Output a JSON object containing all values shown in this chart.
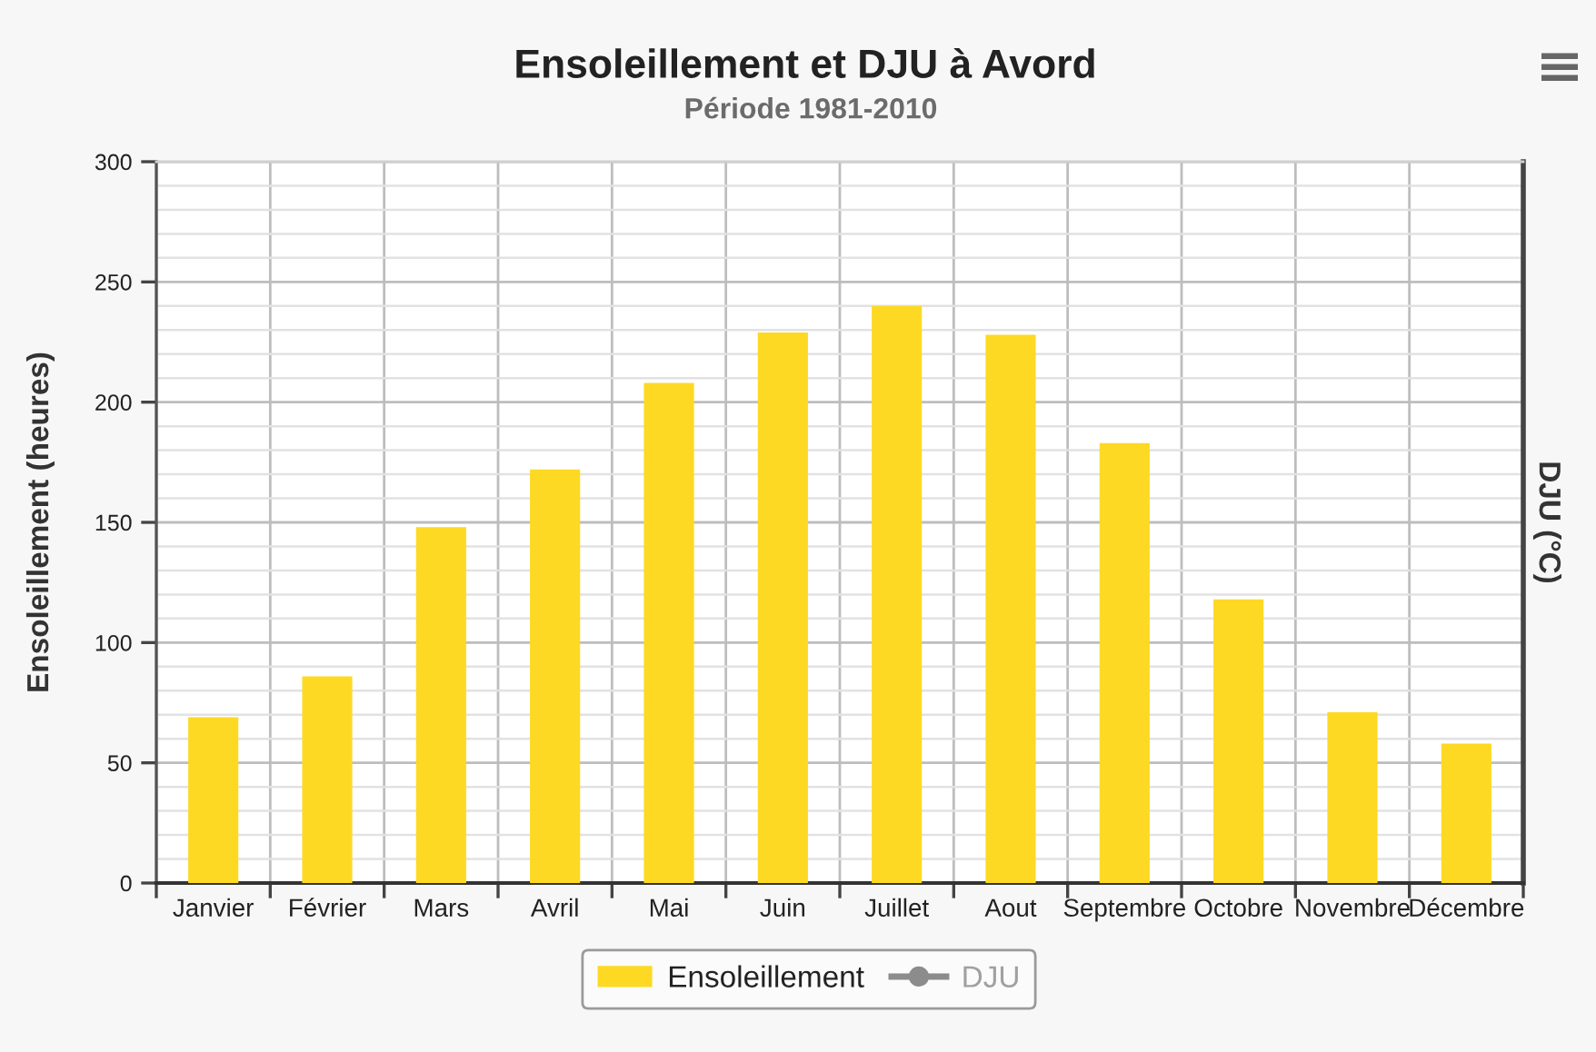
{
  "chart_data": {
    "type": "bar",
    "title": "Ensoleillement et DJU à Avord",
    "subtitle": "Période 1981-2010",
    "ylabel": "Ensoleillement (heures)",
    "y2label": "DJU (°C)",
    "categories": [
      "Janvier",
      "Février",
      "Mars",
      "Avril",
      "Mai",
      "Juin",
      "Juillet",
      "Aout",
      "Septembre",
      "Octobre",
      "Novembre",
      "Décembre"
    ],
    "series": [
      {
        "name": "Ensoleillement",
        "color": "#fdd923",
        "values": [
          69,
          86,
          148,
          172,
          208,
          229,
          240,
          228,
          183,
          118,
          71,
          58
        ]
      },
      {
        "name": "DJU",
        "type": "line",
        "color": "#8c8c8c",
        "marker": "circle",
        "values": [
          null,
          null,
          null,
          null,
          null,
          null,
          null,
          null,
          null,
          null,
          null,
          null
        ]
      }
    ],
    "ylim": [
      0,
      300
    ],
    "yticks": [
      0,
      50,
      100,
      150,
      200,
      250,
      300
    ],
    "grid": true,
    "legend": "bottom"
  }
}
